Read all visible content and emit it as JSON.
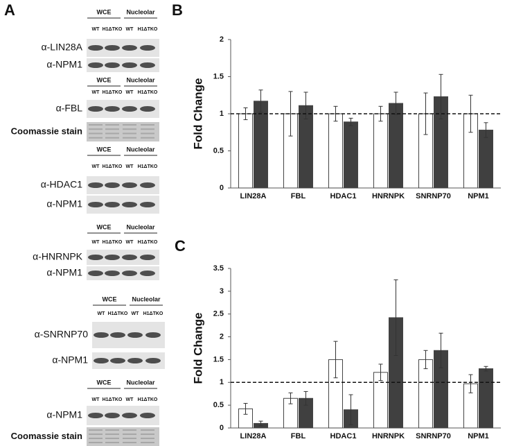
{
  "panel_labels": [
    "A",
    "B",
    "C"
  ],
  "blots": [
    {
      "header": [
        "WCE",
        "Nucleolar"
      ],
      "lanes": [
        "WT",
        "H1ΔTKO",
        "WT",
        "H1ΔTKO"
      ],
      "rows": [
        "α-LIN28A",
        "α-NPM1"
      ]
    },
    {
      "header": [
        "WCE",
        "Nucleolar"
      ],
      "lanes": [
        "WT",
        "H1ΔTKO",
        "WT",
        "H1ΔTKO"
      ],
      "rows": [
        "α-FBL",
        "Coomassie stain"
      ]
    },
    {
      "header": [
        "WCE",
        "Nucleolar"
      ],
      "lanes": [
        "WT",
        "H1ΔTKO",
        "WT",
        "H1ΔTKO"
      ],
      "rows": [
        "α-HDAC1",
        "α-NPM1"
      ]
    },
    {
      "header": [
        "WCE",
        "Nucleolar"
      ],
      "lanes": [
        "WT",
        "H1ΔTKO",
        "WT",
        "H1ΔTKO"
      ],
      "rows": [
        "α-HNRNPK",
        "α-NPM1"
      ]
    },
    {
      "header": [
        "WCE",
        "Nucleolar"
      ],
      "lanes": [
        "WT",
        "H1ΔTKO",
        "WT",
        "H1ΔTKO"
      ],
      "rows": [
        "α-SNRNP70",
        "α-NPM1"
      ]
    },
    {
      "header": [
        "WCE",
        "Nucleolar"
      ],
      "lanes": [
        "WT",
        "H1ΔTKO",
        "WT",
        "H1ΔTKO"
      ],
      "rows": [
        "α-NPM1",
        "Coomassie stain"
      ]
    }
  ],
  "chart_data": [
    {
      "type": "bar",
      "ylabel": "Fold Change",
      "categories": [
        "LIN28A",
        "FBL",
        "HDAC1",
        "HNRNPK",
        "SNRNP70",
        "NPM1"
      ],
      "series": [
        {
          "color": "#ffffff",
          "values": [
            1,
            1,
            1,
            1,
            1,
            1
          ],
          "errors": [
            0.08,
            0.3,
            0.1,
            0.1,
            0.28,
            0.25
          ]
        },
        {
          "color": "#404040",
          "values": [
            1.17,
            1.11,
            0.89,
            1.14,
            1.23,
            0.78
          ],
          "errors": [
            0.15,
            0.18,
            0.05,
            0.15,
            0.3,
            0.1
          ]
        }
      ],
      "ylim": [
        0,
        2
      ],
      "yticks": [
        0,
        0.5,
        1,
        1.5,
        2
      ],
      "hline": 1
    },
    {
      "type": "bar",
      "ylabel": "Fold Change",
      "categories": [
        "LIN28A",
        "FBL",
        "HDAC1",
        "HNRNPK",
        "SNRNP70",
        "NPM1"
      ],
      "series": [
        {
          "color": "#ffffff",
          "values": [
            0.42,
            0.65,
            1.5,
            1.22,
            1.5,
            0.97
          ],
          "errors": [
            0.12,
            0.12,
            0.4,
            0.18,
            0.2,
            0.2
          ]
        },
        {
          "color": "#404040",
          "values": [
            0.1,
            0.65,
            0.4,
            2.42,
            1.7,
            1.3
          ],
          "errors": [
            0.05,
            0.15,
            0.33,
            0.83,
            0.38,
            0.05
          ]
        }
      ],
      "ylim": [
        0,
        3.5
      ],
      "yticks": [
        0,
        0.5,
        1,
        1.5,
        2,
        2.5,
        3,
        3.5
      ],
      "hline": 1
    }
  ]
}
